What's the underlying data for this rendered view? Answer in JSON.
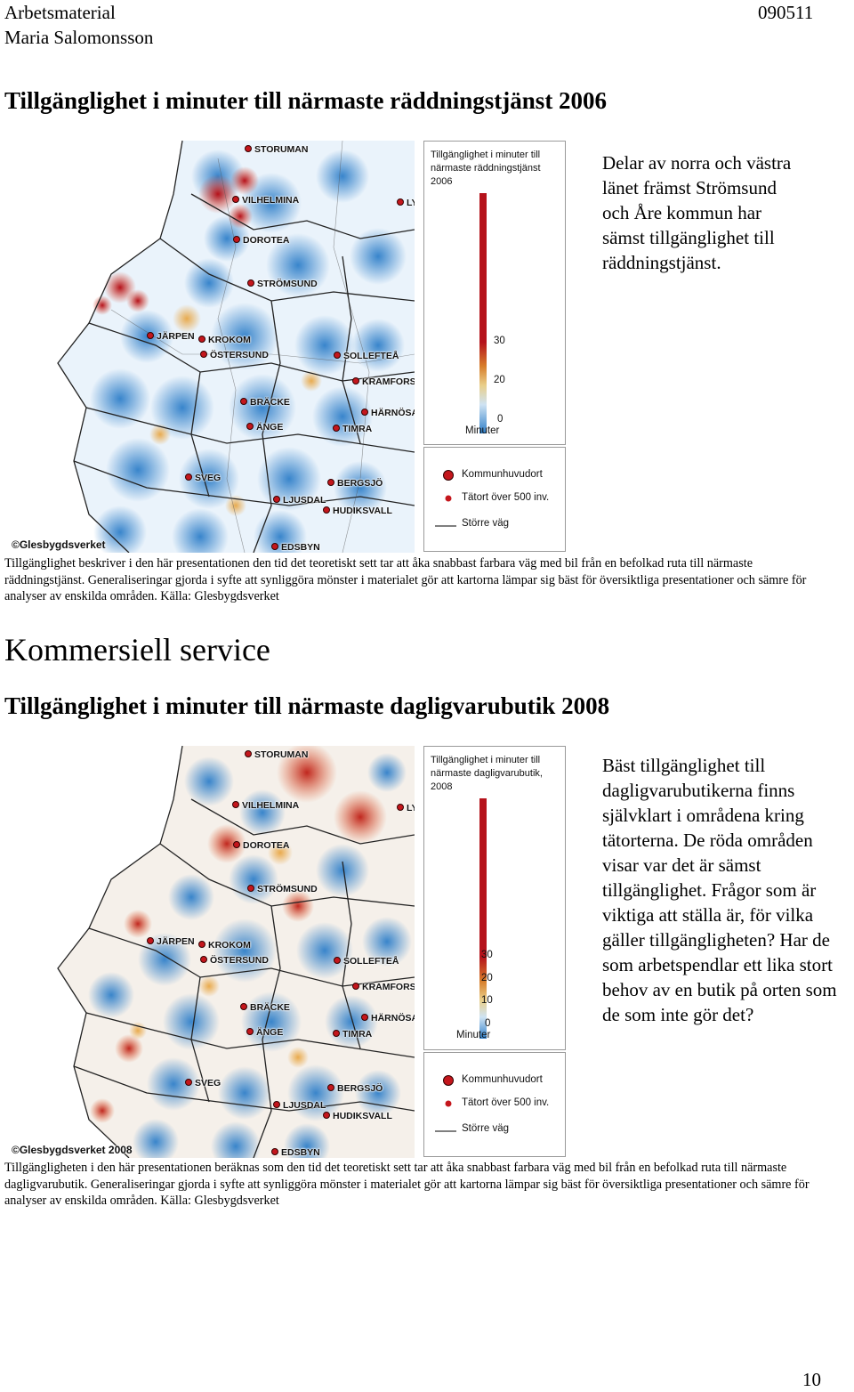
{
  "header": {
    "left_line1": "Arbetsmaterial",
    "left_line2": "Maria Salomonsson",
    "right": "090511"
  },
  "section1": {
    "title": "Tillgänglighet i minuter till närmaste räddningstjänst 2006",
    "side_text": "Delar av norra och västra länet främst Strömsund och Åre kommun har sämst tillgänglighet till räddningstjänst.",
    "legend_title": [
      "Tillgänglighet i minuter till",
      "närmaste räddningstjänst",
      "2006"
    ],
    "ticks": [
      "30",
      "20",
      "0"
    ],
    "unit": "Minuter",
    "credit": "©Glesbygdsverket",
    "caption": "Tillgänglighet beskriver i den här presentationen den tid det teoretiskt sett tar att åka snabbast farbara väg med bil från en befolkad ruta till närmaste räddningstjänst. Generaliseringar gjorda i syfte att synliggöra mönster i materialet gör att kartorna lämpar sig bäst för översiktliga presentationer och sämre för analyser av enskilda områden. Källa: Glesbygdsverket"
  },
  "section2": {
    "heading": "Kommersiell service",
    "title": "Tillgänglighet i minuter till närmaste dagligvarubutik 2008",
    "side_text": "Bäst tillgänglighet till dagligvarubutikerna finns självklart i områdena kring tätorterna. De röda områden visar var det är sämst tillgänglighet. Frågor som är viktiga att ställa är, för vilka gäller tillgängligheten? Har de som arbetspendlar ett lika stort behov av en butik på orten som de som inte gör det?",
    "legend_title": [
      "Tillgänglighet i minuter till",
      "närmaste dagligvarubutik,",
      "2008"
    ],
    "ticks": [
      "30",
      "20",
      "10",
      "0"
    ],
    "unit": "Minuter",
    "credit": "©Glesbygdsverket 2008",
    "caption": "Tillgängligheten i den här presentationen beräknas som den tid det teoretiskt sett tar att åka snabbast farbara väg med bil från en befolkad ruta till närmaste dagligvarubutik. Generaliseringar gjorda i syfte att synliggöra mönster i materialet gör att kartorna lämpar sig bäst för översiktliga presentationer och sämre för analyser av enskilda områden. Källa: Glesbygdsverket"
  },
  "map_legend": {
    "kommun": "Kommunhuvudort",
    "tatort": "Tätort över 500 inv.",
    "vag": "Större väg"
  },
  "places": {
    "storuman": "STORUMAN",
    "vilhelmina": "VILHELMINA",
    "ly": "LY",
    "dorotea": "DOROTEA",
    "stromsund": "STRÖMSUND",
    "jarpen": "JÄRPEN",
    "krokom": "KROKOM",
    "ostersund": "ÖSTERSUND",
    "sollefte": "SOLLEFTEÅ",
    "kramfors": "KRAMFORS",
    "bracke": "BRÄCKE",
    "harnosand": "HÄRNÖSA",
    "ange": "ÄNGE",
    "timra": "TIMRA",
    "sveg": "SVEG",
    "bergsjo": "BERGSJÖ",
    "ljusdal": "LJUSDAL",
    "hudiksvall": "HUDIKSVALL",
    "edsbyn": "EDSBYN"
  },
  "colors": {
    "worst": "#b5121b",
    "mid": "#e8a33c",
    "good": "#2f7fc9",
    "marker": "#c4161c"
  },
  "page_number": "10"
}
